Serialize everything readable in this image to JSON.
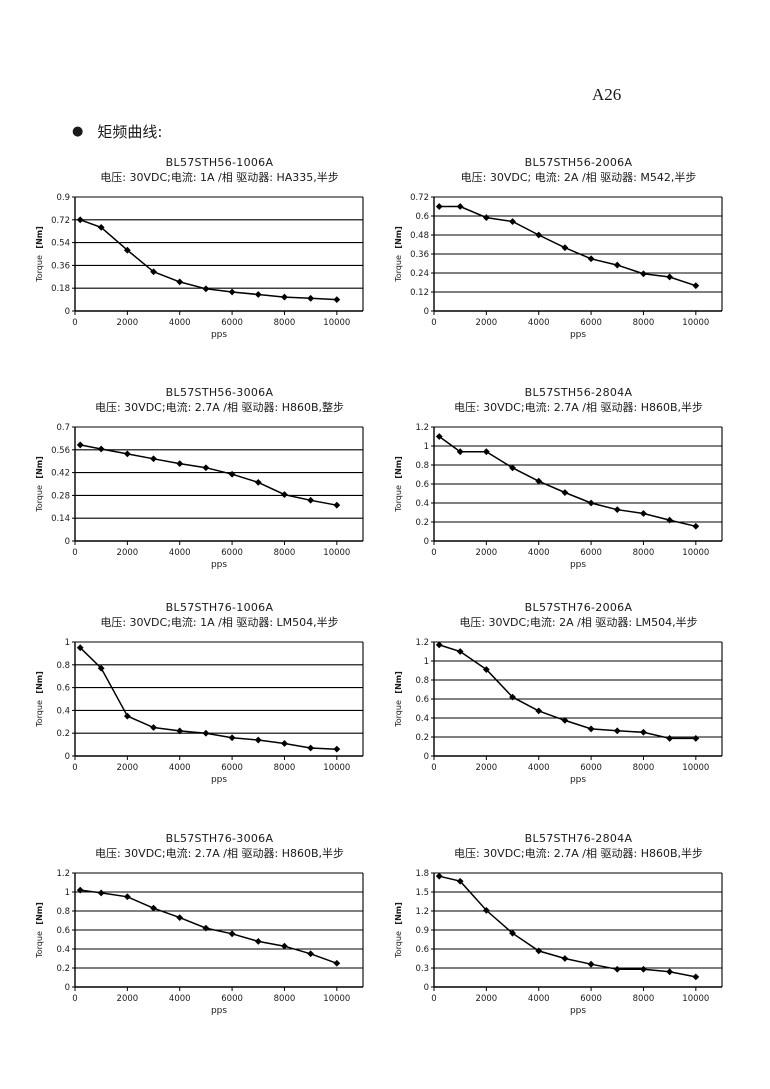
{
  "page": {
    "page_number": "A26",
    "section_bullet": "●",
    "section_title": "矩频曲线:"
  },
  "chart_data": [
    {
      "type": "line",
      "title": "BL57STH56-1006A",
      "subtitle": "电压: 30VDC;电流: 1A /相  驱动器: HA335,半步",
      "xlabel": "pps",
      "ylabel": "Torque  [Nm]",
      "x": [
        200,
        1000,
        2000,
        3000,
        4000,
        5000,
        6000,
        7000,
        8000,
        9000,
        10000
      ],
      "values": [
        0.72,
        0.66,
        0.48,
        0.31,
        0.23,
        0.175,
        0.15,
        0.13,
        0.11,
        0.1,
        0.09
      ],
      "xlim": [
        0,
        11000
      ],
      "ylim": [
        0,
        0.9
      ],
      "ytick_step": 0.18,
      "xticks": [
        0,
        2000,
        4000,
        6000,
        8000,
        10000
      ],
      "grid": true,
      "marker": "diamond",
      "line_color": "#000000"
    },
    {
      "type": "line",
      "title": "BL57STH56-2006A",
      "subtitle": "电压: 30VDC; 电流: 2A /相  驱动器: M542,半步",
      "xlabel": "pps",
      "ylabel": "Torque  [Nm]",
      "x": [
        200,
        1000,
        2000,
        3000,
        4000,
        5000,
        6000,
        7000,
        8000,
        9000,
        10000
      ],
      "values": [
        0.66,
        0.66,
        0.59,
        0.565,
        0.48,
        0.4,
        0.33,
        0.29,
        0.235,
        0.215,
        0.16
      ],
      "xlim": [
        0,
        11000
      ],
      "ylim": [
        0,
        0.72
      ],
      "ytick_step": 0.12,
      "xticks": [
        0,
        2000,
        4000,
        6000,
        8000,
        10000
      ],
      "grid": true,
      "marker": "diamond",
      "line_color": "#000000"
    },
    {
      "type": "line",
      "title": "BL57STH56-3006A",
      "subtitle": "电压: 30VDC;电流: 2.7A /相  驱动器: H860B,整步",
      "xlabel": "pps",
      "ylabel": "Torque  [Nm]",
      "x": [
        200,
        1000,
        2000,
        3000,
        4000,
        5000,
        6000,
        7000,
        8000,
        9000,
        10000
      ],
      "values": [
        0.59,
        0.565,
        0.535,
        0.505,
        0.475,
        0.45,
        0.41,
        0.36,
        0.285,
        0.25,
        0.22
      ],
      "xlim": [
        0,
        11000
      ],
      "ylim": [
        0,
        0.7
      ],
      "ytick_step": 0.14,
      "xticks": [
        0,
        2000,
        4000,
        6000,
        8000,
        10000
      ],
      "grid": true,
      "marker": "diamond",
      "line_color": "#000000"
    },
    {
      "type": "line",
      "title": "BL57STH56-2804A",
      "subtitle": "电压: 30VDC;电流: 2.7A /相  驱动器: H860B,半步",
      "xlabel": "pps",
      "ylabel": "Torque  [Nm]",
      "x": [
        200,
        1000,
        2000,
        3000,
        4000,
        5000,
        6000,
        7000,
        8000,
        9000,
        10000
      ],
      "values": [
        1.1,
        0.94,
        0.94,
        0.77,
        0.63,
        0.51,
        0.4,
        0.33,
        0.29,
        0.22,
        0.155
      ],
      "xlim": [
        0,
        11000
      ],
      "ylim": [
        0,
        1.2
      ],
      "ytick_step": 0.2,
      "xticks": [
        0,
        2000,
        4000,
        6000,
        8000,
        10000
      ],
      "grid": true,
      "marker": "diamond",
      "line_color": "#000000"
    },
    {
      "type": "line",
      "title": "BL57STH76-1006A",
      "subtitle": "电压: 30VDC;电流: 1A /相  驱动器: LM504,半步",
      "xlabel": "pps",
      "ylabel": "Torque  [Nm]",
      "x": [
        200,
        1000,
        2000,
        3000,
        4000,
        5000,
        6000,
        7000,
        8000,
        9000,
        10000
      ],
      "values": [
        0.95,
        0.77,
        0.35,
        0.25,
        0.22,
        0.2,
        0.16,
        0.14,
        0.11,
        0.07,
        0.06
      ],
      "xlim": [
        0,
        11000
      ],
      "ylim": [
        0,
        1.0
      ],
      "ytick_step": 0.2,
      "xticks": [
        0,
        2000,
        4000,
        6000,
        8000,
        10000
      ],
      "grid": true,
      "marker": "diamond",
      "line_color": "#000000"
    },
    {
      "type": "line",
      "title": "BL57STH76-2006A",
      "subtitle": "电压: 30VDC;电流: 2A /相  驱动器: LM504,半步",
      "xlabel": "pps",
      "ylabel": "Torque  [Nm]",
      "x": [
        200,
        1000,
        2000,
        3000,
        4000,
        5000,
        6000,
        7000,
        8000,
        9000,
        10000
      ],
      "values": [
        1.17,
        1.1,
        0.91,
        0.62,
        0.475,
        0.375,
        0.285,
        0.265,
        0.25,
        0.185,
        0.185
      ],
      "xlim": [
        0,
        11000
      ],
      "ylim": [
        0,
        1.2
      ],
      "ytick_step": 0.2,
      "xticks": [
        0,
        2000,
        4000,
        6000,
        8000,
        10000
      ],
      "grid": true,
      "marker": "diamond",
      "line_color": "#000000"
    },
    {
      "type": "line",
      "title": "BL57STH76-3006A",
      "subtitle": "电压: 30VDC;电流: 2.7A /相  驱动器: H860B,半步",
      "xlabel": "pps",
      "ylabel": "Torque  [Nm]",
      "x": [
        200,
        1000,
        2000,
        3000,
        4000,
        5000,
        6000,
        7000,
        8000,
        9000,
        10000
      ],
      "values": [
        1.02,
        0.99,
        0.95,
        0.83,
        0.73,
        0.62,
        0.56,
        0.48,
        0.43,
        0.35,
        0.25
      ],
      "xlim": [
        0,
        11000
      ],
      "ylim": [
        0,
        1.2
      ],
      "ytick_step": 0.2,
      "xticks": [
        0,
        2000,
        4000,
        6000,
        8000,
        10000
      ],
      "grid": true,
      "marker": "diamond",
      "line_color": "#000000"
    },
    {
      "type": "line",
      "title": "BL57STH76-2804A",
      "subtitle": "电压: 30VDC;电流: 2.7A /相  驱动器: H860B,半步",
      "xlabel": "pps",
      "ylabel": "Torque  [Nm]",
      "x": [
        200,
        1000,
        2000,
        3000,
        4000,
        5000,
        6000,
        7000,
        8000,
        9000,
        10000
      ],
      "values": [
        1.75,
        1.67,
        1.21,
        0.85,
        0.57,
        0.45,
        0.36,
        0.28,
        0.28,
        0.24,
        0.16
      ],
      "xlim": [
        0,
        11000
      ],
      "ylim": [
        0,
        1.8
      ],
      "ytick_step": 0.3,
      "xticks": [
        0,
        2000,
        4000,
        6000,
        8000,
        10000
      ],
      "grid": true,
      "marker": "diamond",
      "line_color": "#000000"
    }
  ]
}
